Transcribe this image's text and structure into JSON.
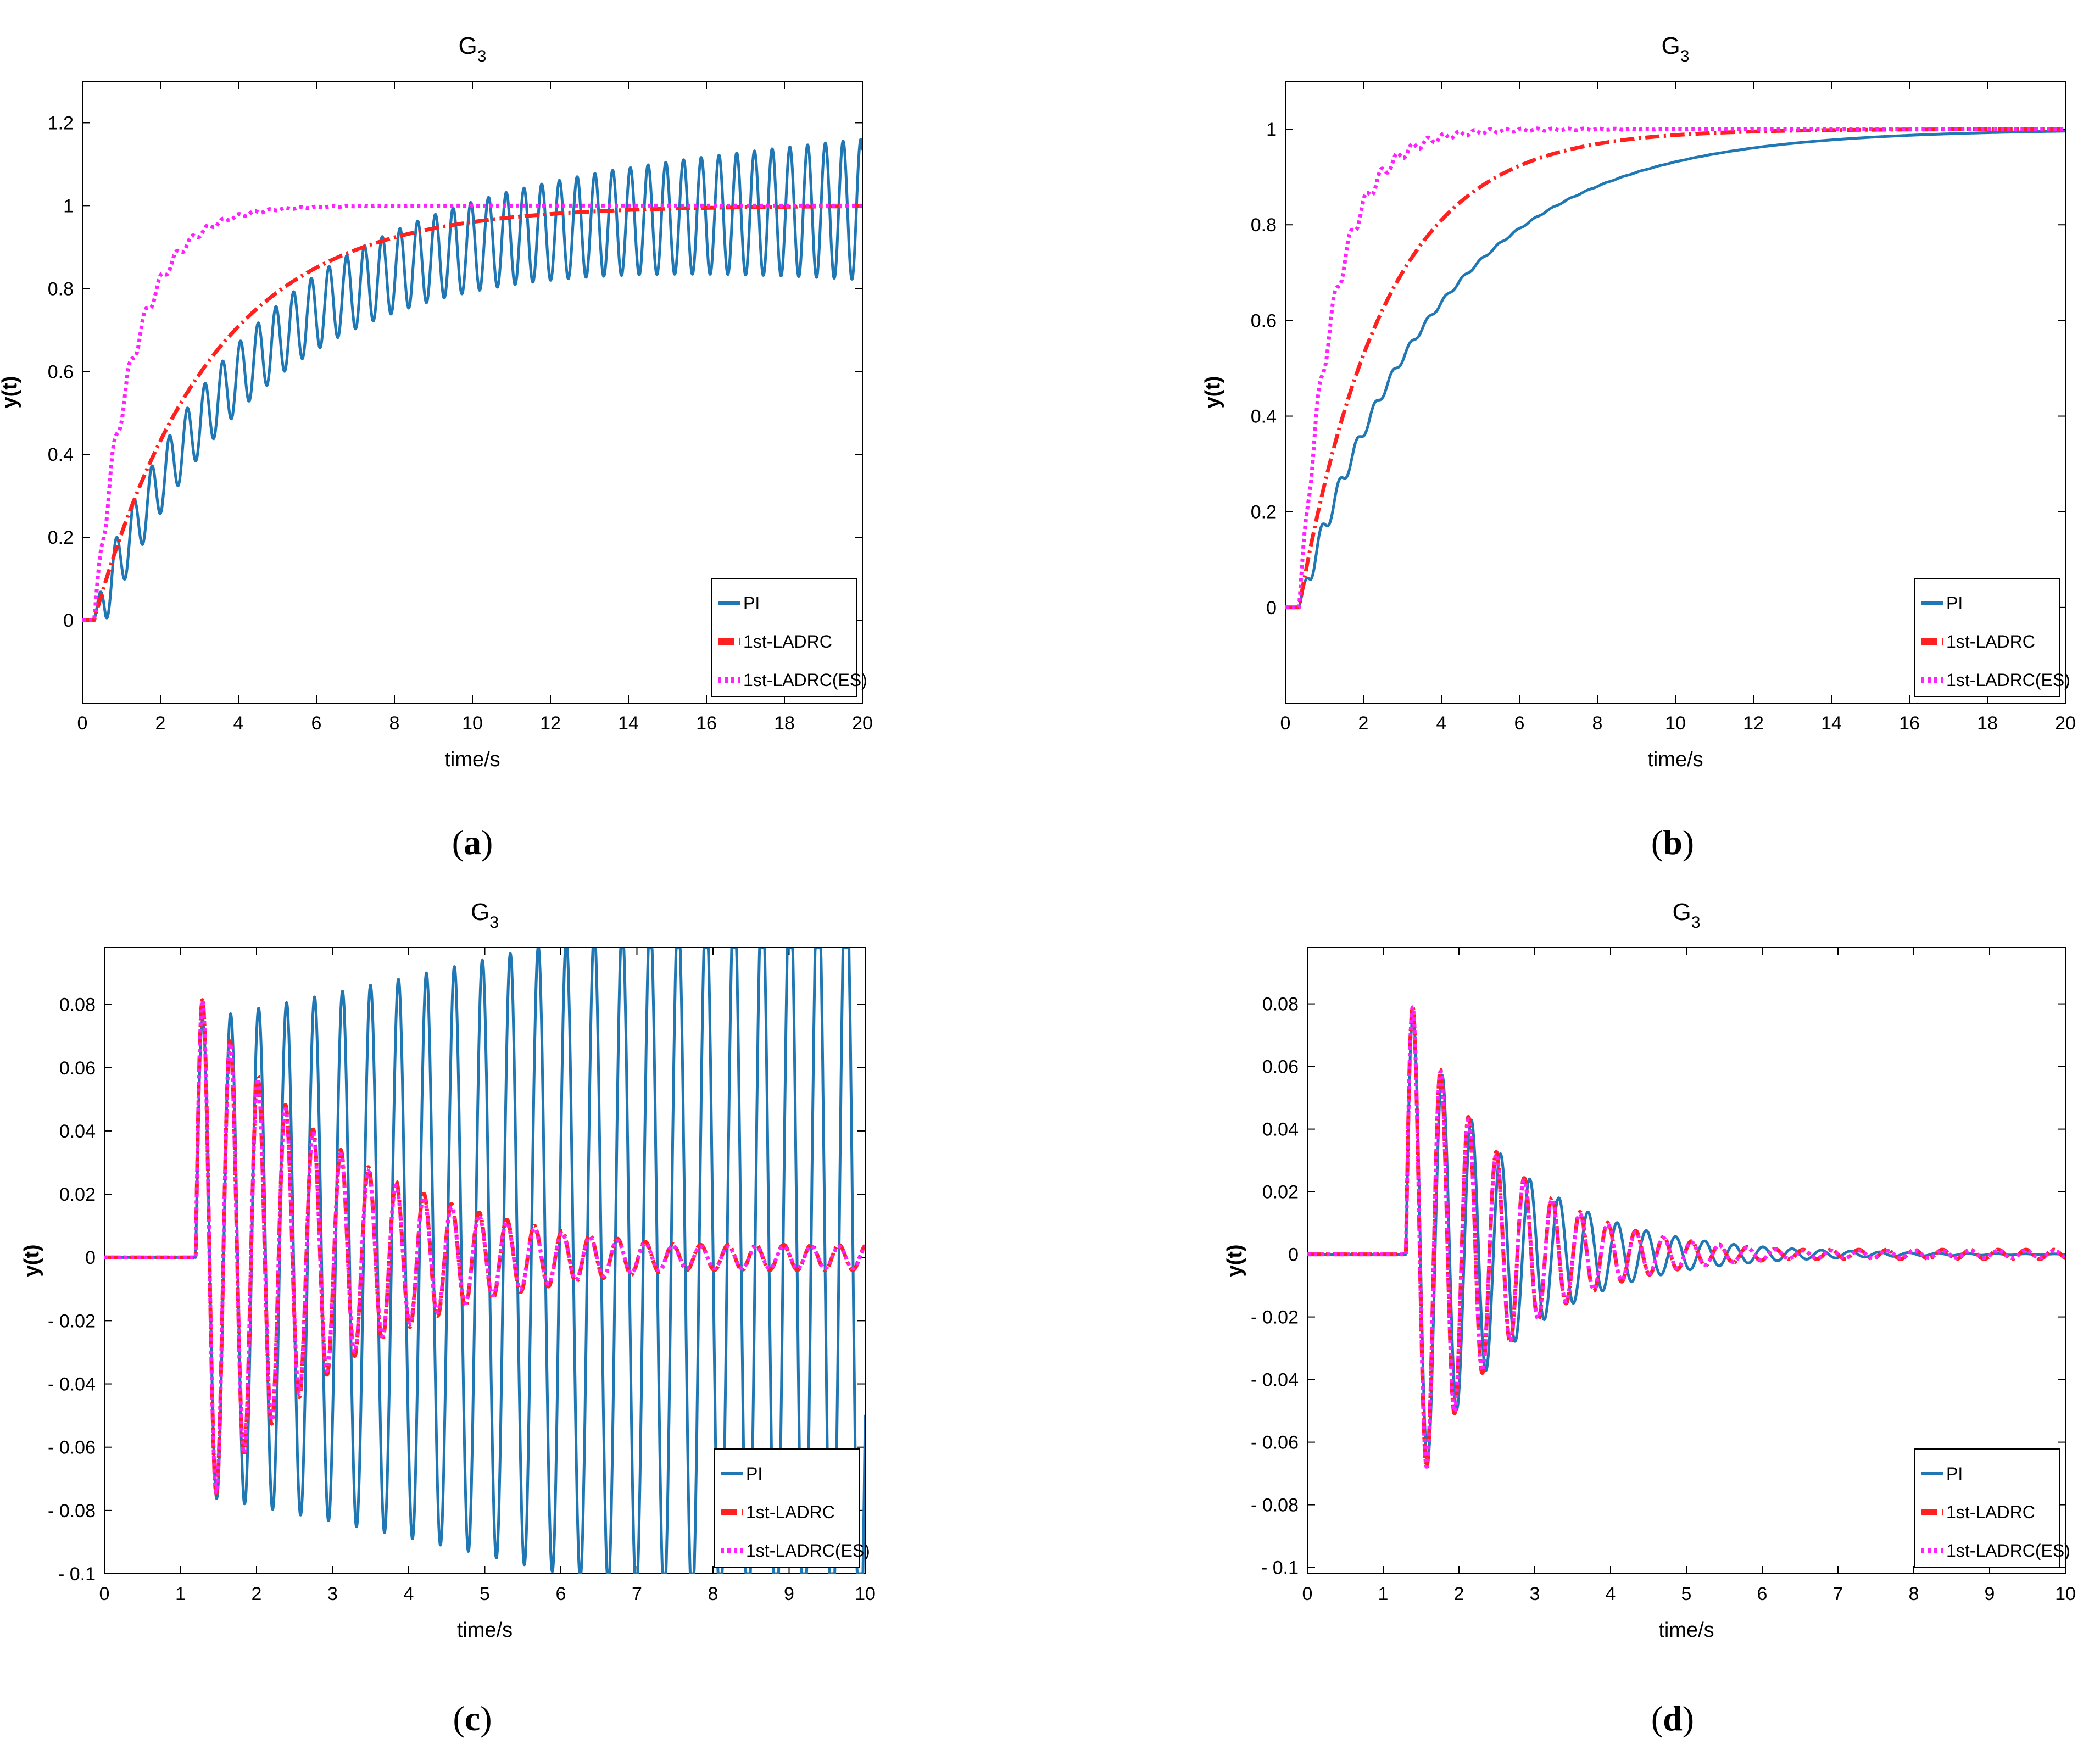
{
  "figure": {
    "panels": [
      "a",
      "b",
      "c",
      "d"
    ],
    "captions": [
      {
        "open": "(",
        "letter": "a",
        "close": ")"
      },
      {
        "open": "(",
        "letter": "b",
        "close": ")"
      },
      {
        "open": "(",
        "letter": "c",
        "close": ")"
      },
      {
        "open": "(",
        "letter": "d",
        "close": ")"
      }
    ]
  },
  "colors": {
    "pi": "#1f77b4",
    "ladrc": "#ff2020",
    "ladrc_es": "#ff22ff"
  },
  "legend": [
    "PI",
    "1st-LADRC",
    "1st-LADRC(ES)"
  ],
  "chart_data": [
    {
      "type": "line",
      "title": "G",
      "title_sub": "3",
      "xlabel": "time/s",
      "ylabel": "y(t)",
      "xlim": [
        0,
        20
      ],
      "ylim": [
        -0.2,
        1.3
      ],
      "xticks": [
        "0",
        "2",
        "4",
        "6",
        "8",
        "10",
        "12",
        "14",
        "16",
        "18",
        "20"
      ],
      "yticks": [
        "0",
        "0.2",
        "0.4",
        "0.6",
        "0.8",
        "1",
        "1.2"
      ],
      "series": [
        {
          "name": "PI",
          "model": "step",
          "delay": 0.3,
          "tau": 4.2,
          "osc_amp": 0.07,
          "osc_grow": 0.045,
          "osc_freq": 2.2
        },
        {
          "name": "1st-LADRC",
          "model": "step",
          "delay": 0.3,
          "tau": 3.0,
          "osc_amp": 0.0,
          "osc_grow": 0,
          "osc_freq": 2.0
        },
        {
          "name": "1st-LADRC(ES)",
          "model": "step",
          "delay": 0.3,
          "tau": 1.0,
          "osc_amp": 0.04,
          "osc_grow": -0.6,
          "osc_freq": 2.5
        }
      ]
    },
    {
      "type": "line",
      "title": "G",
      "title_sub": "3",
      "xlabel": "time/s",
      "ylabel": "y(t)",
      "xlim": [
        0,
        20
      ],
      "ylim": [
        -0.2,
        1.1
      ],
      "xticks": [
        "0",
        "2",
        "4",
        "6",
        "8",
        "10",
        "12",
        "14",
        "16",
        "18",
        "20"
      ],
      "yticks": [
        "0",
        "0.2",
        "0.4",
        "0.6",
        "0.8",
        "1"
      ],
      "series": [
        {
          "name": "PI",
          "model": "step",
          "delay": 0.35,
          "tau": 3.6,
          "osc_amp": 0.03,
          "osc_grow": -0.5,
          "osc_freq": 2.2
        },
        {
          "name": "1st-LADRC",
          "model": "step",
          "delay": 0.35,
          "tau": 2.2,
          "osc_amp": 0.0,
          "osc_grow": 0,
          "osc_freq": 2.0
        },
        {
          "name": "1st-LADRC(ES)",
          "model": "step",
          "delay": 0.35,
          "tau": 0.9,
          "osc_amp": 0.03,
          "osc_grow": -0.4,
          "osc_freq": 2.5
        }
      ]
    },
    {
      "type": "line",
      "title": "G",
      "title_sub": "3",
      "xlabel": "time/s",
      "ylabel": "y(t)",
      "xlim": [
        0,
        10
      ],
      "ylim": [
        -0.1,
        0.098
      ],
      "xticks": [
        "0",
        "1",
        "2",
        "3",
        "4",
        "5",
        "6",
        "7",
        "8",
        "9",
        "10"
      ],
      "yticks": [
        "0.08",
        "0.06",
        "0.04",
        "0.02",
        "0",
        "- 0.02",
        "- 0.04",
        "- 0.06",
        "- 0.08",
        "- 0.1"
      ],
      "series": [
        {
          "name": "PI",
          "model": "burst",
          "start": 1.2,
          "amp": 0.075,
          "decay": -0.06,
          "freq": 2.72,
          "clip": true
        },
        {
          "name": "1st-LADRC",
          "model": "burst",
          "start": 1.2,
          "amp": 0.085,
          "decay": 0.48,
          "freq": 2.75,
          "floor": 0.004
        },
        {
          "name": "1st-LADRC(ES)",
          "model": "burst",
          "start": 1.2,
          "amp": 0.085,
          "decay": 0.5,
          "freq": 2.75,
          "floor": 0.0035
        }
      ]
    },
    {
      "type": "line",
      "title": "G",
      "title_sub": "3",
      "xlabel": "time/s",
      "ylabel": "y(t)",
      "xlim": [
        0,
        10
      ],
      "ylim": [
        -0.102,
        0.098
      ],
      "xticks": [
        "0",
        "1",
        "2",
        "3",
        "4",
        "5",
        "6",
        "7",
        "8",
        "9",
        "10"
      ],
      "yticks": [
        "0.08",
        "0.06",
        "0.04",
        "0.02",
        "0",
        "- 0.02",
        "- 0.04",
        "- 0.06",
        "- 0.08",
        "- 0.1"
      ],
      "series": [
        {
          "name": "PI",
          "model": "burst",
          "start": 1.3,
          "amp": 0.082,
          "decay": 0.75,
          "freq": 2.6,
          "floor": 0.0
        },
        {
          "name": "1st-LADRC",
          "model": "burst",
          "start": 1.3,
          "amp": 0.085,
          "decay": 0.8,
          "freq": 2.72,
          "floor": 0.0015
        },
        {
          "name": "1st-LADRC(ES)",
          "model": "burst",
          "start": 1.3,
          "amp": 0.085,
          "decay": 0.82,
          "freq": 2.72,
          "floor": 0.0012
        }
      ]
    }
  ]
}
